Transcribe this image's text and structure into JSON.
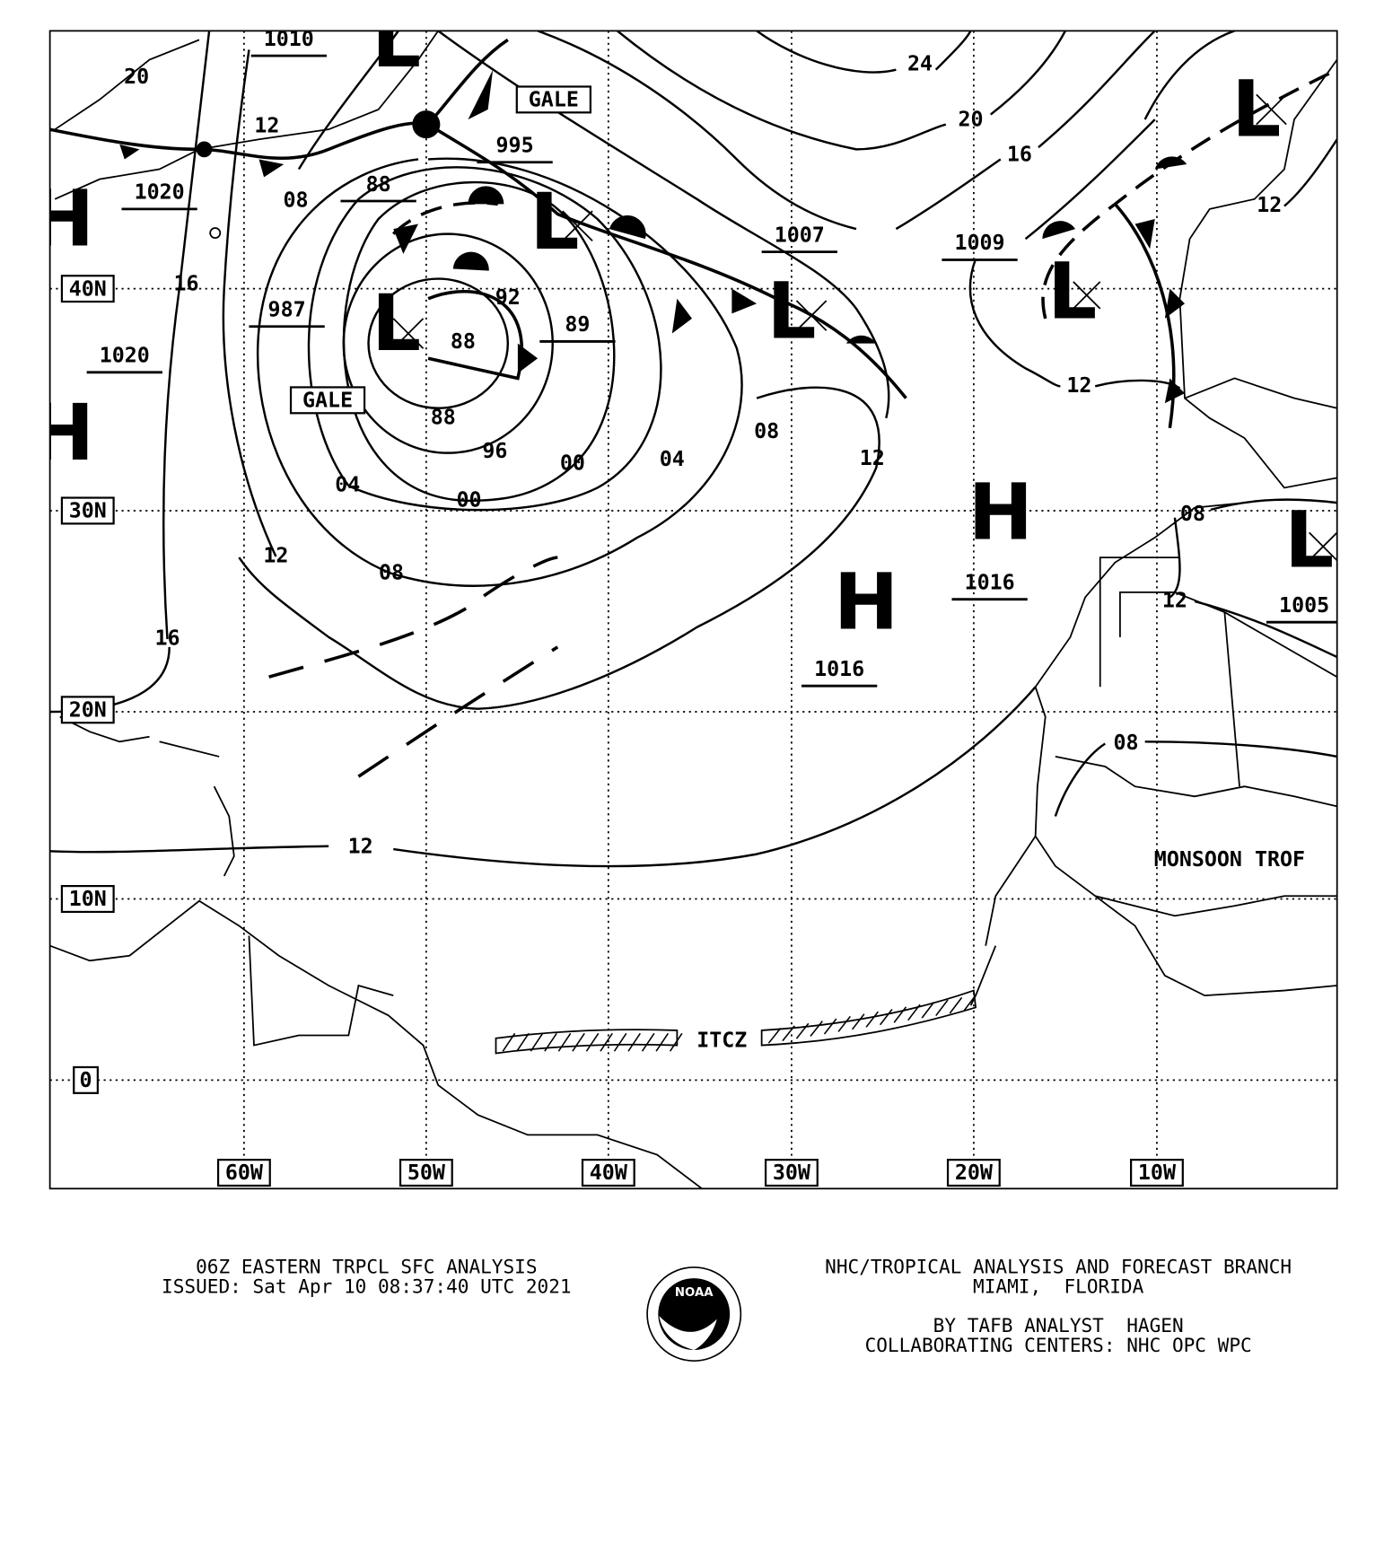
{
  "map": {
    "colors": {
      "ink": "#000000",
      "background": "#ffffff"
    },
    "lon_labels": [
      "60W",
      "50W",
      "40W",
      "30W",
      "20W",
      "10W"
    ],
    "lat_labels": [
      "40N",
      "30N",
      "20N",
      "10N",
      "0"
    ],
    "pressure_centers": [
      "L",
      "L",
      "L",
      "L",
      "L",
      "L",
      "L",
      "H",
      "H",
      "H",
      "H"
    ],
    "pressure_values": [
      "1010",
      "1020",
      "1020",
      "995",
      "987",
      "89",
      "1007",
      "1009",
      "1016",
      "1016",
      "1005",
      "88"
    ],
    "isobar_labels": [
      "20",
      "12",
      "08",
      "88",
      "16",
      "92",
      "88",
      "96",
      "00",
      "04",
      "08",
      "12",
      "04",
      "00",
      "12",
      "08",
      "16",
      "12",
      "24",
      "20",
      "16",
      "12",
      "12",
      "08",
      "12",
      "08"
    ],
    "warnings": [
      "GALE",
      "GALE"
    ],
    "features": {
      "itcz": "ITCZ",
      "monsoon_trough": "MONSOON TROF"
    }
  },
  "footer": {
    "title": "06Z EASTERN TRPCL SFC ANALYSIS",
    "issued": "ISSUED: Sat Apr 10 08:37:40 UTC 2021",
    "agency": "NHC/TROPICAL ANALYSIS AND FORECAST BRANCH",
    "location": "MIAMI,  FLORIDA",
    "analyst": "BY TAFB ANALYST  HAGEN",
    "collaborators": "COLLABORATING CENTERS: NHC OPC WPC",
    "logo_text": "NOAA"
  }
}
